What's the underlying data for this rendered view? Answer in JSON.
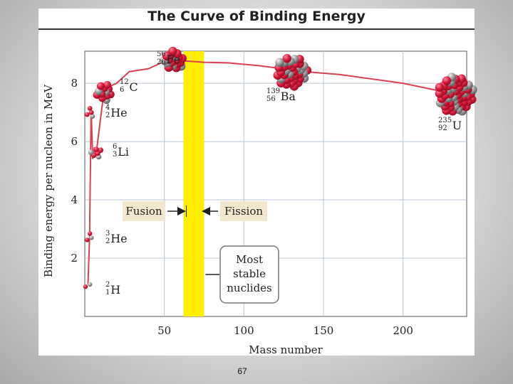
{
  "page_number": "67",
  "colors": {
    "curve": "#d94050",
    "band": "#ffee00",
    "grid": "#b8c4d2",
    "label_box": "#f3e6cf",
    "proton": "#d8193a",
    "neutron": "#9a9a9a"
  },
  "chart_data": {
    "type": "line",
    "title": "The Curve of Binding Energy",
    "xlabel": "Mass number",
    "ylabel": "Binding energy per nucleon in MeV",
    "xlim": [
      0,
      240
    ],
    "ylim": [
      0,
      9.1
    ],
    "x_ticks": [
      50,
      100,
      150,
      200
    ],
    "y_ticks": [
      2,
      4,
      6,
      8
    ],
    "grid": true,
    "series": [
      {
        "name": "binding energy per nucleon",
        "x": [
          2,
          3,
          4,
          5,
          6,
          7,
          9,
          12,
          16,
          20,
          28,
          40,
          50,
          56,
          62,
          75,
          90,
          110,
          138,
          160,
          200,
          235
        ],
        "y": [
          1.1,
          2.7,
          7.1,
          5.4,
          5.8,
          5.5,
          6.4,
          7.7,
          7.9,
          8.0,
          8.4,
          8.5,
          8.75,
          8.79,
          8.77,
          8.72,
          8.7,
          8.6,
          8.4,
          8.3,
          8.0,
          7.6
        ]
      }
    ],
    "nuclides": [
      {
        "id": "h2",
        "mass": "2",
        "z": "1",
        "symbol": "H",
        "x": 2,
        "y": 1.1
      },
      {
        "id": "he3",
        "mass": "3",
        "z": "2",
        "symbol": "He",
        "x": 3,
        "y": 2.7
      },
      {
        "id": "li6",
        "mass": "6",
        "z": "3",
        "symbol": "Li",
        "x": 7,
        "y": 5.6
      },
      {
        "id": "he4",
        "mass": "4",
        "z": "2",
        "symbol": "He",
        "x": 3,
        "y": 7.0
      },
      {
        "id": "c12",
        "mass": "12",
        "z": "6",
        "symbol": "C",
        "x": 12,
        "y": 7.7
      },
      {
        "id": "fe56",
        "mass": "56",
        "z": "26",
        "symbol": "Fe",
        "x": 56,
        "y": 8.79
      },
      {
        "id": "ba139",
        "mass": "139",
        "z": "56",
        "symbol": "Ba",
        "x": 130,
        "y": 8.4
      },
      {
        "id": "u235",
        "mass": "235",
        "z": "92",
        "symbol": "U",
        "x": 233,
        "y": 7.6
      }
    ],
    "stable_band": {
      "x_from": 62,
      "x_to": 75
    },
    "annotations": {
      "fusion": "Fusion",
      "fission": "Fission",
      "stable_line1": "Most",
      "stable_line2": "stable",
      "stable_line3": "nuclides"
    }
  }
}
